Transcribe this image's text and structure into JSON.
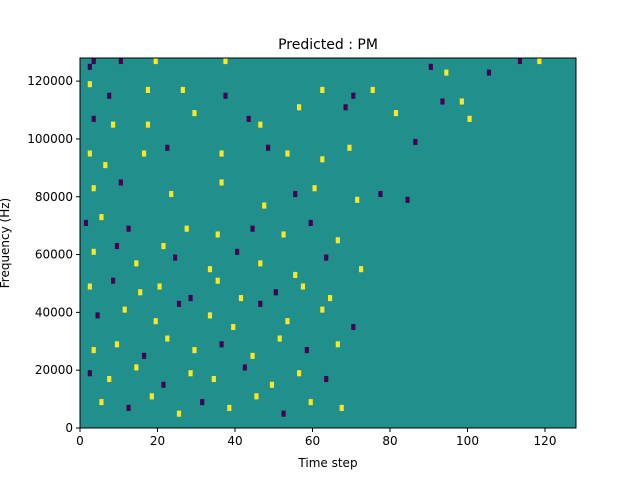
{
  "chart_data": {
    "type": "heatmap",
    "title": "Predicted : PM",
    "xlabel": "Time step",
    "ylabel": "Frequency (Hz)",
    "xlim": [
      0,
      128
    ],
    "ylim": [
      0,
      128000
    ],
    "xticks": [
      0,
      20,
      40,
      60,
      80,
      100,
      120
    ],
    "xtick_labels": [
      "0",
      "20",
      "40",
      "60",
      "80",
      "100",
      "120"
    ],
    "yticks": [
      0,
      20000,
      40000,
      60000,
      80000,
      100000,
      120000
    ],
    "ytick_labels": [
      "0",
      "20000",
      "40000",
      "60000",
      "80000",
      "100000",
      "120000"
    ],
    "n_time_steps": 128,
    "n_freq_bins": 64,
    "bin_hz": 2000,
    "colormap": "viridis",
    "colors": {
      "background": "#21908d",
      "high": "#fde725",
      "low": "#440154"
    },
    "values_legend": {
      "0": "mid (background)",
      "1": "high",
      "-1": "low"
    },
    "default_value": 0,
    "cells": [
      [
        2,
        62,
        -1
      ],
      [
        3,
        63,
        -1
      ],
      [
        10,
        63,
        -1
      ],
      [
        19,
        63,
        1
      ],
      [
        37,
        63,
        1
      ],
      [
        90,
        62,
        -1
      ],
      [
        94,
        61,
        1
      ],
      [
        105,
        61,
        -1
      ],
      [
        113,
        63,
        -1
      ],
      [
        118,
        63,
        1
      ],
      [
        2,
        59,
        1
      ],
      [
        7,
        57,
        -1
      ],
      [
        17,
        58,
        1
      ],
      [
        26,
        58,
        1
      ],
      [
        37,
        57,
        -1
      ],
      [
        62,
        58,
        1
      ],
      [
        70,
        57,
        -1
      ],
      [
        75,
        58,
        1
      ],
      [
        93,
        56,
        -1
      ],
      [
        98,
        56,
        1
      ],
      [
        3,
        53,
        -1
      ],
      [
        8,
        52,
        1
      ],
      [
        17,
        52,
        1
      ],
      [
        29,
        54,
        1
      ],
      [
        43,
        53,
        -1
      ],
      [
        46,
        52,
        1
      ],
      [
        56,
        55,
        1
      ],
      [
        68,
        55,
        -1
      ],
      [
        81,
        54,
        1
      ],
      [
        100,
        53,
        1
      ],
      [
        2,
        47,
        1
      ],
      [
        6,
        45,
        1
      ],
      [
        16,
        47,
        1
      ],
      [
        22,
        48,
        -1
      ],
      [
        36,
        47,
        1
      ],
      [
        48,
        48,
        -1
      ],
      [
        53,
        47,
        1
      ],
      [
        62,
        46,
        1
      ],
      [
        69,
        48,
        1
      ],
      [
        86,
        49,
        -1
      ],
      [
        3,
        41,
        1
      ],
      [
        10,
        42,
        -1
      ],
      [
        23,
        40,
        1
      ],
      [
        36,
        42,
        1
      ],
      [
        47,
        38,
        1
      ],
      [
        55,
        40,
        -1
      ],
      [
        60,
        41,
        1
      ],
      [
        71,
        39,
        1
      ],
      [
        77,
        40,
        -1
      ],
      [
        84,
        39,
        -1
      ],
      [
        1,
        35,
        -1
      ],
      [
        5,
        36,
        1
      ],
      [
        12,
        34,
        -1
      ],
      [
        21,
        31,
        1
      ],
      [
        27,
        34,
        1
      ],
      [
        35,
        33,
        1
      ],
      [
        44,
        34,
        -1
      ],
      [
        52,
        33,
        1
      ],
      [
        59,
        35,
        -1
      ],
      [
        66,
        32,
        1
      ],
      [
        3,
        30,
        1
      ],
      [
        9,
        31,
        -1
      ],
      [
        14,
        28,
        1
      ],
      [
        24,
        29,
        -1
      ],
      [
        33,
        27,
        1
      ],
      [
        40,
        30,
        -1
      ],
      [
        46,
        28,
        1
      ],
      [
        55,
        26,
        1
      ],
      [
        63,
        29,
        -1
      ],
      [
        72,
        27,
        1
      ],
      [
        2,
        24,
        1
      ],
      [
        8,
        25,
        -1
      ],
      [
        15,
        23,
        1
      ],
      [
        20,
        24,
        1
      ],
      [
        28,
        22,
        -1
      ],
      [
        35,
        25,
        1
      ],
      [
        41,
        22,
        1
      ],
      [
        50,
        23,
        -1
      ],
      [
        57,
        24,
        1
      ],
      [
        64,
        22,
        1
      ],
      [
        4,
        19,
        -1
      ],
      [
        11,
        20,
        1
      ],
      [
        19,
        18,
        1
      ],
      [
        25,
        21,
        -1
      ],
      [
        33,
        19,
        1
      ],
      [
        39,
        17,
        1
      ],
      [
        46,
        21,
        -1
      ],
      [
        53,
        18,
        1
      ],
      [
        62,
        20,
        1
      ],
      [
        70,
        17,
        -1
      ],
      [
        3,
        13,
        1
      ],
      [
        9,
        14,
        1
      ],
      [
        16,
        12,
        -1
      ],
      [
        22,
        15,
        1
      ],
      [
        29,
        13,
        1
      ],
      [
        36,
        14,
        -1
      ],
      [
        44,
        12,
        1
      ],
      [
        51,
        15,
        1
      ],
      [
        58,
        13,
        -1
      ],
      [
        66,
        14,
        1
      ],
      [
        2,
        9,
        -1
      ],
      [
        7,
        8,
        1
      ],
      [
        14,
        10,
        1
      ],
      [
        21,
        7,
        -1
      ],
      [
        28,
        9,
        1
      ],
      [
        34,
        8,
        1
      ],
      [
        42,
        10,
        -1
      ],
      [
        49,
        7,
        1
      ],
      [
        56,
        9,
        1
      ],
      [
        63,
        8,
        -1
      ],
      [
        5,
        4,
        1
      ],
      [
        12,
        3,
        -1
      ],
      [
        18,
        5,
        1
      ],
      [
        25,
        2,
        1
      ],
      [
        31,
        4,
        -1
      ],
      [
        38,
        3,
        1
      ],
      [
        45,
        5,
        1
      ],
      [
        52,
        2,
        -1
      ],
      [
        59,
        4,
        1
      ],
      [
        67,
        3,
        1
      ]
    ]
  }
}
